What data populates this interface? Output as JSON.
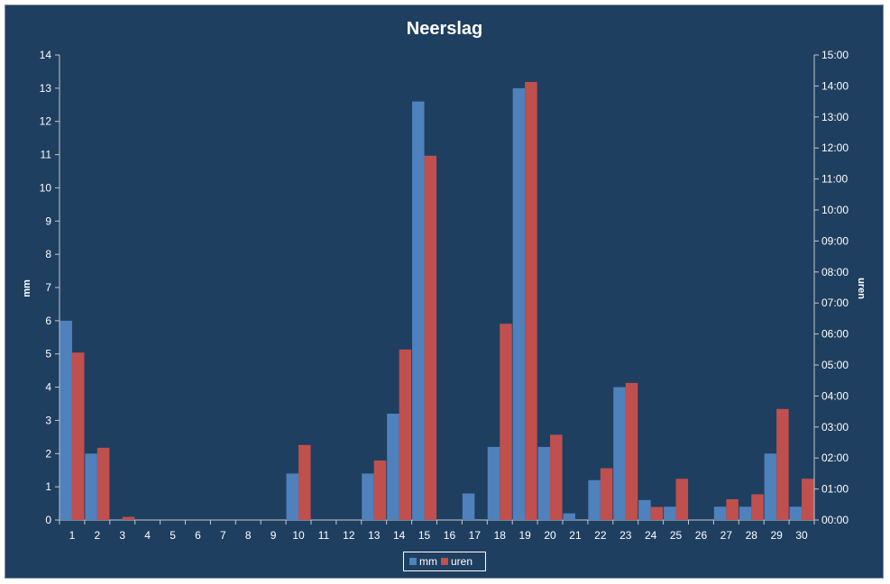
{
  "chart_data": {
    "type": "bar",
    "title": "Neerslag",
    "xlabel": "",
    "ylabel": "mm",
    "y2label": "uren",
    "ylim": [
      0,
      14
    ],
    "y2lim": [
      0,
      15
    ],
    "y_ticks": [
      "0",
      "1",
      "2",
      "3",
      "4",
      "5",
      "6",
      "7",
      "8",
      "9",
      "10",
      "11",
      "12",
      "13",
      "14"
    ],
    "y2_ticks": [
      "00:00",
      "01:00",
      "02:00",
      "03:00",
      "04:00",
      "05:00",
      "06:00",
      "07:00",
      "08:00",
      "09:00",
      "10:00",
      "11:00",
      "12:00",
      "13:00",
      "14:00",
      "15:00"
    ],
    "categories": [
      "1",
      "2",
      "3",
      "4",
      "5",
      "6",
      "7",
      "8",
      "9",
      "10",
      "11",
      "12",
      "13",
      "14",
      "15",
      "16",
      "17",
      "18",
      "19",
      "20",
      "21",
      "22",
      "23",
      "24",
      "25",
      "26",
      "27",
      "28",
      "29",
      "30"
    ],
    "series": [
      {
        "name": "mm",
        "axis": "left",
        "color": "#4f81bd",
        "values": [
          6.0,
          2.0,
          0,
          0,
          0,
          0,
          0,
          0,
          0,
          1.4,
          0,
          0,
          1.4,
          3.2,
          12.6,
          0,
          0.8,
          2.2,
          13.0,
          2.2,
          0.2,
          1.2,
          4.0,
          0.6,
          0.4,
          0,
          0.4,
          0.4,
          2.0,
          0.4
        ]
      },
      {
        "name": "uren",
        "axis": "right",
        "color": "#c0504d",
        "values": [
          5.4,
          2.33,
          0.1,
          0,
          0,
          0,
          0,
          0,
          0,
          2.42,
          0,
          0,
          1.92,
          5.5,
          11.75,
          0,
          0,
          6.33,
          14.13,
          2.75,
          0,
          1.67,
          4.42,
          0.42,
          1.33,
          0,
          0.67,
          0.83,
          3.58,
          1.33
        ]
      }
    ],
    "legend": "bottom",
    "grid": false
  },
  "colors": {
    "background": "#1f3f60",
    "text": "#ffffff",
    "axis": "#c0c8d0"
  }
}
